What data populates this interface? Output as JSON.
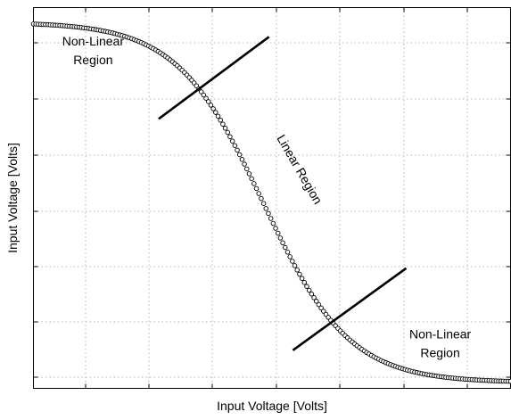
{
  "chart_data": {
    "type": "scatter",
    "title": "",
    "xlabel": "Input Voltage [Volts]",
    "ylabel": "Input Voltage [Volts]",
    "xlim": [
      0,
      8
    ],
    "ylim": [
      0,
      6.5
    ],
    "x_tick_labels": [],
    "y_tick_labels": [],
    "grid": true,
    "curve": {
      "model": "logistic",
      "x_start": 0,
      "x_end": 8,
      "point_count": 200,
      "upper_level": 6.25,
      "lower_level": 0.1,
      "midpoint": 3.85,
      "steepness": 1.38
    },
    "boundary_lines": [
      {
        "name": "upper-boundary",
        "x1": 2.1,
        "y1": 4.6,
        "x2": 3.95,
        "y2": 6.0
      },
      {
        "name": "lower-boundary",
        "x1": 4.35,
        "y1": 0.65,
        "x2": 6.25,
        "y2": 2.05
      }
    ],
    "annotations": [
      {
        "name": "non-linear-region-top",
        "lines": [
          "Non-Linear",
          "Region"
        ],
        "x": 1.0,
        "y": 5.85
      },
      {
        "name": "linear-region",
        "lines": [
          "Linear Region"
        ],
        "x": 4.4,
        "y": 3.7,
        "rotation_deg": 60
      },
      {
        "name": "non-linear-region-bottom",
        "lines": [
          "Non-Linear",
          "Region"
        ],
        "x": 6.82,
        "y": 0.85
      }
    ]
  }
}
